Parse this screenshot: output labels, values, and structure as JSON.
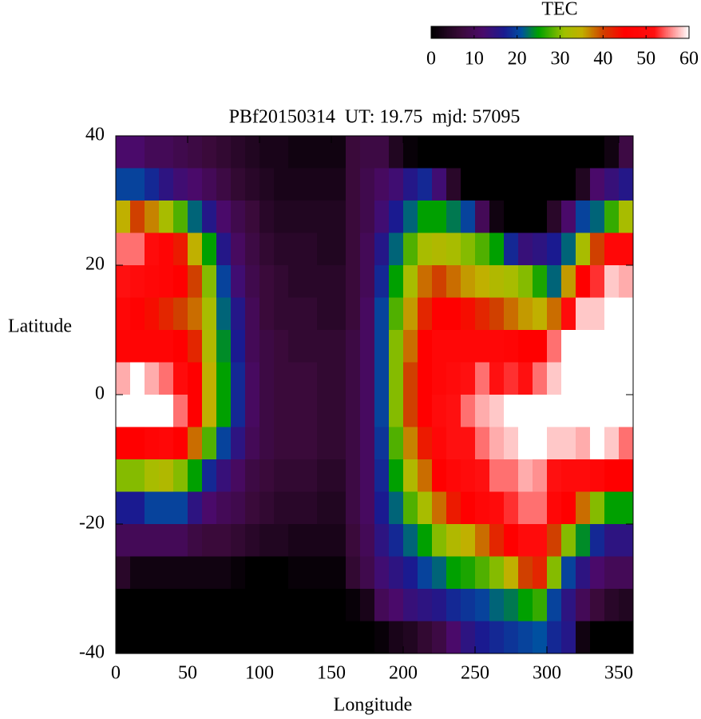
{
  "chart_data": {
    "type": "heatmap",
    "title": "PBf20150314  UT: 19.75  mjd: 57095",
    "xlabel": "Longitude",
    "ylabel": "Latitude",
    "xlim": [
      0,
      360
    ],
    "ylim": [
      -40,
      40
    ],
    "xticks": [
      0,
      50,
      100,
      150,
      200,
      250,
      300,
      350
    ],
    "yticks": [
      -40,
      -20,
      0,
      20,
      40
    ],
    "x": [
      5,
      15,
      25,
      35,
      45,
      55,
      65,
      75,
      85,
      95,
      105,
      115,
      125,
      135,
      145,
      155,
      165,
      175,
      185,
      195,
      205,
      215,
      225,
      235,
      245,
      255,
      265,
      275,
      285,
      295,
      305,
      315,
      325,
      335,
      345,
      355
    ],
    "y": [
      37.5,
      32.5,
      27.5,
      22.5,
      17.5,
      12.5,
      7.5,
      2.5,
      -2.5,
      -7.5,
      -12.5,
      -17.5,
      -22.5,
      -27.5,
      -32.5,
      -37.5
    ],
    "values": [
      [
        12,
        20,
        35,
        55,
        52,
        48,
        47,
        57,
        60,
        45,
        30,
        17,
        10,
        5,
        0,
        0
      ],
      [
        12,
        20,
        40,
        55,
        50,
        46,
        47,
        60,
        60,
        45,
        30,
        17,
        10,
        2,
        0,
        0
      ],
      [
        10,
        18,
        37,
        50,
        48,
        44,
        47,
        57,
        60,
        47,
        32,
        20,
        10,
        2,
        0,
        0
      ],
      [
        10,
        15,
        32,
        47,
        47,
        42,
        47,
        55,
        60,
        48,
        33,
        20,
        10,
        2,
        0,
        0
      ],
      [
        9,
        13,
        28,
        43,
        45,
        40,
        45,
        50,
        55,
        45,
        30,
        20,
        10,
        2,
        0,
        0
      ],
      [
        8,
        12,
        22,
        35,
        40,
        38,
        42,
        45,
        45,
        38,
        25,
        15,
        8,
        2,
        0,
        0
      ],
      [
        7,
        10,
        16,
        25,
        30,
        32,
        33,
        35,
        35,
        28,
        18,
        12,
        7,
        2,
        0,
        0
      ],
      [
        6,
        8,
        12,
        16,
        20,
        22,
        24,
        25,
        25,
        20,
        14,
        10,
        7,
        2,
        0,
        0
      ],
      [
        5,
        6,
        9,
        11,
        13,
        16,
        17,
        18,
        18,
        15,
        11,
        9,
        6,
        1,
        0,
        0
      ],
      [
        4,
        5,
        7,
        8,
        9,
        10,
        10,
        11,
        11,
        10,
        8,
        7,
        5,
        0,
        0,
        0
      ],
      [
        3,
        4,
        5,
        6,
        7,
        7,
        8,
        8,
        8,
        8,
        7,
        6,
        4,
        0,
        0,
        0
      ],
      [
        3,
        3,
        4,
        5,
        6,
        6,
        7,
        7,
        7,
        7,
        6,
        5,
        4,
        0,
        0,
        0
      ],
      [
        2,
        3,
        4,
        5,
        5,
        6,
        6,
        7,
        7,
        7,
        6,
        5,
        3,
        1,
        0,
        0
      ],
      [
        2,
        3,
        4,
        5,
        5,
        6,
        6,
        7,
        7,
        7,
        6,
        5,
        3,
        1,
        0,
        0
      ],
      [
        2,
        3,
        4,
        4,
        5,
        5,
        6,
        6,
        6,
        6,
        5,
        4,
        3,
        1,
        0,
        0
      ],
      [
        2,
        3,
        4,
        4,
        5,
        5,
        6,
        6,
        6,
        6,
        5,
        4,
        3,
        1,
        0,
        0
      ],
      [
        7,
        7,
        7,
        7,
        7,
        7,
        8,
        8,
        8,
        8,
        8,
        8,
        7,
        6,
        1,
        0
      ],
      [
        8,
        9,
        9,
        10,
        10,
        11,
        11,
        11,
        11,
        11,
        11,
        11,
        10,
        9,
        3,
        0
      ],
      [
        8,
        11,
        13,
        16,
        18,
        20,
        20,
        20,
        20,
        19,
        18,
        17,
        15,
        13,
        10,
        1
      ],
      [
        4,
        13,
        17,
        22,
        25,
        28,
        30,
        30,
        30,
        28,
        25,
        22,
        18,
        15,
        12,
        3
      ],
      [
        1,
        16,
        22,
        28,
        32,
        36,
        38,
        40,
        40,
        37,
        33,
        28,
        22,
        17,
        14,
        4
      ],
      [
        0,
        18,
        25,
        32,
        38,
        42,
        45,
        45,
        45,
        43,
        38,
        32,
        25,
        20,
        15,
        6
      ],
      [
        0,
        13,
        25,
        33,
        40,
        45,
        48,
        48,
        50,
        48,
        45,
        38,
        30,
        22,
        16,
        8
      ],
      [
        0,
        5,
        23,
        32,
        38,
        45,
        48,
        50,
        52,
        52,
        48,
        43,
        33,
        25,
        18,
        12
      ],
      [
        0,
        0,
        20,
        30,
        36,
        44,
        48,
        52,
        55,
        52,
        50,
        45,
        35,
        26,
        19,
        15
      ],
      [
        0,
        0,
        10,
        28,
        35,
        42,
        48,
        55,
        57,
        55,
        52,
        48,
        38,
        28,
        20,
        17
      ],
      [
        0,
        0,
        2,
        25,
        33,
        40,
        48,
        52,
        58,
        57,
        55,
        50,
        42,
        30,
        22,
        18
      ],
      [
        0,
        0,
        0,
        18,
        32,
        38,
        47,
        53,
        60,
        58,
        55,
        53,
        45,
        35,
        23,
        19
      ],
      [
        0,
        0,
        0,
        14,
        30,
        36,
        45,
        52,
        60,
        60,
        57,
        55,
        50,
        40,
        25,
        20
      ],
      [
        0,
        0,
        0,
        15,
        26,
        35,
        45,
        55,
        60,
        60,
        56,
        55,
        50,
        42,
        27,
        21
      ],
      [
        0,
        0,
        5,
        17,
        22,
        38,
        55,
        58,
        60,
        58,
        52,
        48,
        40,
        30,
        20,
        18
      ],
      [
        0,
        0,
        12,
        22,
        36,
        50,
        60,
        60,
        60,
        58,
        50,
        45,
        30,
        20,
        15,
        16
      ],
      [
        0,
        4,
        20,
        32,
        45,
        58,
        60,
        60,
        60,
        57,
        50,
        38,
        24,
        15,
        10,
        2
      ],
      [
        0,
        12,
        22,
        40,
        53,
        58,
        60,
        60,
        60,
        60,
        48,
        30,
        18,
        12,
        7,
        0
      ],
      [
        2,
        14,
        27,
        48,
        58,
        60,
        60,
        60,
        60,
        58,
        45,
        25,
        15,
        10,
        5,
        0
      ],
      [
        8,
        16,
        32,
        48,
        57,
        60,
        60,
        60,
        60,
        55,
        45,
        25,
        15,
        10,
        4,
        0
      ]
    ],
    "colorbar": {
      "label": "TEC",
      "lim": [
        0,
        60
      ],
      "ticks": [
        0,
        10,
        20,
        30,
        40,
        50,
        60
      ]
    },
    "colormap": [
      [
        0,
        "#000000"
      ],
      [
        7,
        "#3a0a3a"
      ],
      [
        12,
        "#4a0a6a"
      ],
      [
        17,
        "#1a1a90"
      ],
      [
        21,
        "#0050a0"
      ],
      [
        25,
        "#00a000"
      ],
      [
        31,
        "#a0c000"
      ],
      [
        35,
        "#c0b000"
      ],
      [
        40,
        "#d04000"
      ],
      [
        45,
        "#ff0000"
      ],
      [
        52,
        "#ff1010"
      ],
      [
        56,
        "#ff9090"
      ],
      [
        60,
        "#ffffff"
      ]
    ]
  }
}
